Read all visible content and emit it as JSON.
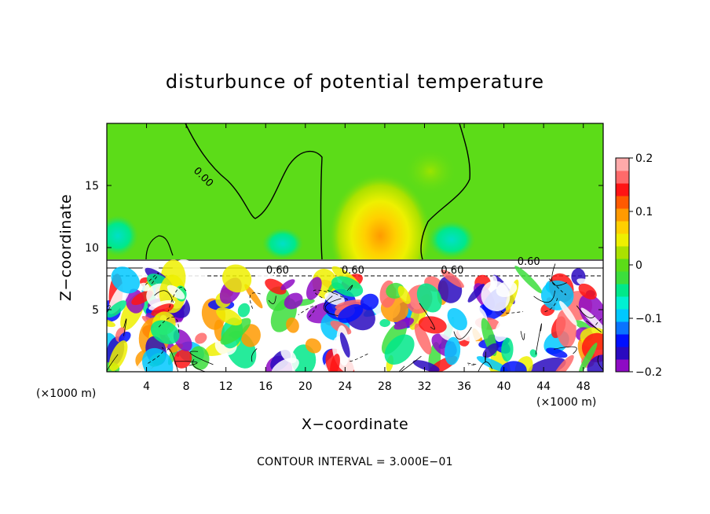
{
  "chart_data": {
    "type": "heatmap",
    "title": "disturbunce of potential temperature",
    "xlabel": "X−coordinate",
    "ylabel": "Z−coordinate",
    "x_unit": "(×1000 m)",
    "y_unit": "(×1000 m)",
    "xlim": [
      0,
      50
    ],
    "ylim": [
      0,
      20
    ],
    "x_ticks": [
      4,
      8,
      12,
      16,
      20,
      24,
      28,
      32,
      36,
      40,
      44,
      48
    ],
    "y_ticks": [
      5,
      10,
      15
    ],
    "x_tick_labels": [
      "4",
      "8",
      "12",
      "16",
      "20",
      "24",
      "28",
      "32",
      "36",
      "40",
      "44",
      "48"
    ],
    "y_tick_labels": [
      "5",
      "10",
      "15"
    ],
    "colorbar": {
      "range": [
        -0.2,
        0.2
      ],
      "tick_values": [
        0.2,
        0.1,
        0,
        -0.1,
        -0.2
      ],
      "tick_labels": [
        "0.2",
        "0.1",
        "0",
        "−0.1",
        "−0.2"
      ],
      "colors": [
        "#8e0bc4",
        "#2a0ac0",
        "#0010ff",
        "#0a73ff",
        "#00c8ff",
        "#00f0d2",
        "#00e88a",
        "#3cde3c",
        "#5cdc18",
        "#aae100",
        "#eef000",
        "#ffd000",
        "#ff9a00",
        "#ff5a00",
        "#ff1414",
        "#ff6a6a",
        "#ffaaaa"
      ]
    },
    "contour_labels": [
      {
        "text": "0.00",
        "x": 9.5,
        "y": 15.5
      },
      {
        "text": "0.60",
        "x": 42.5,
        "y": 8.6
      },
      {
        "text": "0.60",
        "x": 24.8,
        "y": 7.9
      },
      {
        "text": "0.60",
        "x": 34.8,
        "y": 7.9
      },
      {
        "text": "0.60",
        "x": 17.2,
        "y": 7.9
      }
    ],
    "contour_interval": 0.3,
    "grid": false,
    "legend": "colorbar-right"
  },
  "footer": {
    "contour_interval_text": "CONTOUR INTERVAL = 3.000E−01"
  }
}
